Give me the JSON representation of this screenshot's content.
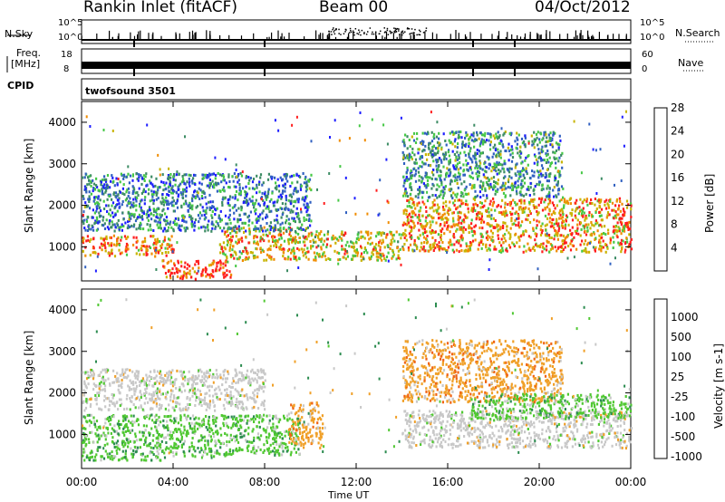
{
  "header": {
    "station": "Rankin Inlet (fitACF)",
    "beam": "Beam 00",
    "date": "04/Oct/2012"
  },
  "panels": {
    "nsky_label": "N.Sky",
    "nsky_ticks": [
      "10^5",
      "10^0"
    ],
    "nsearch_label": "N.Search",
    "freq_label": "Freq.",
    "freq_unit": "[MHz]",
    "freq_ticks": [
      "18",
      "8"
    ],
    "nave_ticks": [
      "60",
      "0"
    ],
    "nave_label": "Nave",
    "cpid_label": "CPID",
    "cpid_value": "twofsound 3501"
  },
  "chart_data": [
    {
      "type": "heatmap",
      "title": "",
      "xlabel": "",
      "ylabel": "Slant Range [km]",
      "x_ticks": [
        "00:00",
        "04:00",
        "08:00",
        "12:00",
        "16:00",
        "20:00",
        "00:00"
      ],
      "xlim": [
        0,
        24
      ],
      "ylim": [
        180,
        4500
      ],
      "y_ticks": [
        1000,
        2000,
        3000,
        4000
      ],
      "colorbar": {
        "label": "Power [dB]",
        "ticks": [
          4,
          8,
          12,
          16,
          20,
          24,
          28
        ],
        "colors": [
          "#1e1eff",
          "#3060c0",
          "#3c8c64",
          "#46c846",
          "#c8b400",
          "#f08c00",
          "#ff1e1e"
        ]
      },
      "bands": [
        {
          "start_h": 0.0,
          "end_h": 4.0,
          "range_km": [
            800,
            1300
          ],
          "level": 26
        },
        {
          "start_h": 3.5,
          "end_h": 6.5,
          "range_km": [
            250,
            700
          ],
          "level": 30
        },
        {
          "start_h": 6.0,
          "end_h": 10.0,
          "range_km": [
            700,
            1500
          ],
          "level": 24
        },
        {
          "start_h": 10.0,
          "end_h": 14.0,
          "range_km": [
            700,
            1400
          ],
          "level": 22
        },
        {
          "start_h": 14.0,
          "end_h": 24.0,
          "range_km": [
            900,
            2200
          ],
          "level": 25
        },
        {
          "start_h": 0.0,
          "end_h": 10.0,
          "range_km": [
            1400,
            2800
          ],
          "level": 12
        },
        {
          "start_h": 14.0,
          "end_h": 21.0,
          "range_km": [
            2200,
            3800
          ],
          "level": 14
        }
      ]
    },
    {
      "type": "heatmap",
      "title": "",
      "xlabel": "Time UT",
      "ylabel": "Slant Range [km]",
      "x_ticks": [
        "00:00",
        "04:00",
        "08:00",
        "12:00",
        "16:00",
        "20:00",
        "00:00"
      ],
      "xlim": [
        0,
        24
      ],
      "ylim": [
        180,
        4500
      ],
      "y_ticks": [
        1000,
        2000,
        3000,
        4000
      ],
      "colorbar": {
        "label": "Velocity [m s-1]",
        "ticks": [
          "1000",
          "500",
          "100",
          "25",
          "-25",
          "-100",
          "-500",
          "-1000"
        ],
        "colors": [
          "#1e3cc8",
          "#2864a0",
          "#2c8c50",
          "#50c832",
          "#c8c8c8",
          "#f0a028",
          "#f06414",
          "#ff1e1e"
        ]
      },
      "bands": [
        {
          "start_h": 0.0,
          "end_h": 4.0,
          "range_km": [
            400,
            1500
          ],
          "level": 100
        },
        {
          "start_h": 4.0,
          "end_h": 9.5,
          "range_km": [
            500,
            1500
          ],
          "level": 100
        },
        {
          "start_h": 9.0,
          "end_h": 10.5,
          "range_km": [
            700,
            1800
          ],
          "level": -100
        },
        {
          "start_h": 14.0,
          "end_h": 24.0,
          "range_km": [
            700,
            1600
          ],
          "level": 0
        },
        {
          "start_h": 14.0,
          "end_h": 21.0,
          "range_km": [
            1800,
            3300
          ],
          "level": -100
        },
        {
          "start_h": 17.0,
          "end_h": 24.0,
          "range_km": [
            1400,
            2000
          ],
          "level": 100
        },
        {
          "start_h": 0.0,
          "end_h": 8.0,
          "range_km": [
            1600,
            2600
          ],
          "level": 0
        }
      ]
    }
  ]
}
